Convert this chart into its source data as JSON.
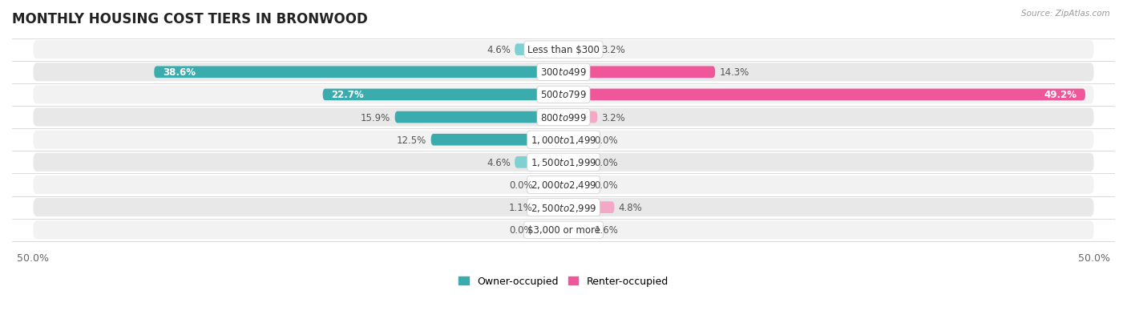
{
  "title": "MONTHLY HOUSING COST TIERS IN BRONWOOD",
  "source": "Source: ZipAtlas.com",
  "categories": [
    "Less than $300",
    "$300 to $499",
    "$500 to $799",
    "$800 to $999",
    "$1,000 to $1,499",
    "$1,500 to $1,999",
    "$2,000 to $2,499",
    "$2,500 to $2,999",
    "$3,000 or more"
  ],
  "owner_values": [
    4.6,
    38.6,
    22.7,
    15.9,
    12.5,
    4.6,
    0.0,
    1.1,
    0.0
  ],
  "renter_values": [
    3.2,
    14.3,
    49.2,
    3.2,
    0.0,
    0.0,
    0.0,
    4.8,
    1.6
  ],
  "owner_color_dark": "#3aacad",
  "owner_color_light": "#7fd0d1",
  "renter_color_dark": "#f0569a",
  "renter_color_light": "#f5a8c5",
  "row_colors": [
    "#f2f2f2",
    "#e8e8e8"
  ],
  "axis_limit": 50.0,
  "min_bar_width": 2.5,
  "legend_owner": "Owner-occupied",
  "legend_renter": "Renter-occupied",
  "title_fontsize": 12,
  "label_fontsize": 8.5,
  "value_fontsize": 8.5,
  "tick_fontsize": 9,
  "cat_fontsize": 8.5
}
